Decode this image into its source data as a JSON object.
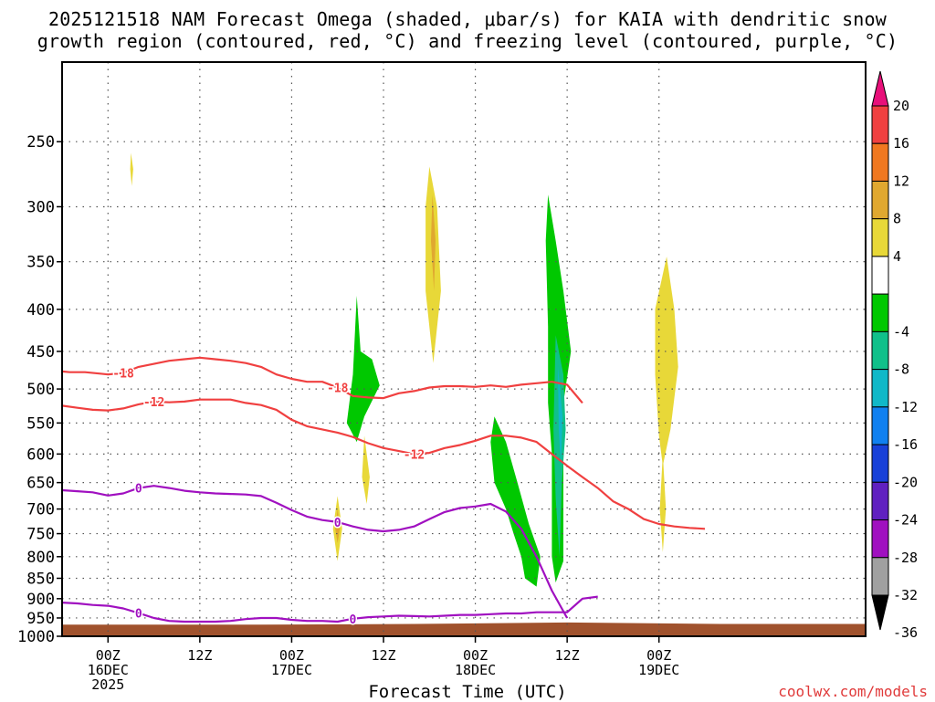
{
  "chart_data": {
    "type": "heatmap",
    "title_line1": "2025121518 NAM Forecast Omega (shaded, μbar/s) for KAIA with dendritic snow",
    "title_line2": "growth region (contoured, red, °C) and freezing level (contoured, purple, °C)",
    "xlabel": "Forecast Time (UTC)",
    "credit": "coolwx.com/models",
    "xlim": [
      -6,
      99
    ],
    "ylim": [
      1000,
      200
    ],
    "x_ticks": [
      {
        "x": 0,
        "lines": [
          "00Z",
          "16DEC",
          "2025"
        ]
      },
      {
        "x": 12,
        "lines": [
          "12Z"
        ]
      },
      {
        "x": 24,
        "lines": [
          "00Z",
          "17DEC"
        ]
      },
      {
        "x": 36,
        "lines": [
          "12Z"
        ]
      },
      {
        "x": 48,
        "lines": [
          "00Z",
          "18DEC"
        ]
      },
      {
        "x": 60,
        "lines": [
          "12Z"
        ]
      },
      {
        "x": 72,
        "lines": [
          "00Z",
          "19DEC"
        ]
      }
    ],
    "y_ticks": [
      250,
      300,
      350,
      400,
      450,
      500,
      550,
      600,
      650,
      700,
      750,
      800,
      850,
      900,
      950,
      1000
    ],
    "colorbar": {
      "labels": [
        "20",
        "16",
        "12",
        "8",
        "4",
        "-4",
        "-8",
        "-12",
        "-16",
        "-20",
        "-24",
        "-28",
        "-32",
        "-36"
      ],
      "colors": [
        "#e8107a",
        "#f04040",
        "#f07820",
        "#e0a830",
        "#e8d838",
        "#ffffff",
        "#00c800",
        "#10c08a",
        "#10b8c8",
        "#1080f0",
        "#1840d8",
        "#6020c0",
        "#a010c0",
        "#a0a0a0",
        "#000000"
      ]
    },
    "series": [
      {
        "name": "-18C",
        "color": "#f04040",
        "label": "-18",
        "x": [
          -6,
          -5,
          -3,
          -1,
          0,
          2,
          4,
          6,
          8,
          10,
          12,
          14,
          16,
          18,
          20,
          22,
          24,
          26,
          28,
          30,
          32,
          34,
          36,
          38,
          40,
          42,
          44,
          46,
          48,
          50,
          52,
          54,
          56,
          58,
          60,
          62
        ],
        "y": [
          476,
          477,
          477,
          479,
          480,
          478,
          470,
          466,
          462,
          460,
          458,
          460,
          462,
          465,
          470,
          480,
          486,
          490,
          490,
          498,
          510,
          512,
          513,
          506,
          503,
          498,
          496,
          496,
          497,
          495,
          497,
          494,
          492,
          490,
          494,
          520
        ]
      },
      {
        "name": "-12C",
        "color": "#f04040",
        "label": "-12",
        "x": [
          -6,
          -4,
          -2,
          0,
          2,
          4,
          6,
          8,
          10,
          12,
          14,
          16,
          18,
          20,
          22,
          24,
          26,
          28,
          30,
          32,
          34,
          36,
          38,
          40,
          42,
          44,
          46,
          48,
          50,
          52,
          54,
          56,
          58,
          60,
          62,
          64,
          66,
          68,
          70,
          72,
          74,
          76,
          78
        ],
        "y": [
          524,
          527,
          530,
          531,
          528,
          522,
          518,
          519,
          518,
          515,
          515,
          515,
          520,
          523,
          530,
          545,
          555,
          560,
          565,
          572,
          582,
          590,
          595,
          600,
          598,
          590,
          585,
          578,
          570,
          570,
          573,
          580,
          600,
          620,
          640,
          660,
          685,
          700,
          720,
          730,
          735,
          738,
          740
        ]
      },
      {
        "name": "0C upper",
        "color": "#a010c0",
        "label": "0",
        "x": [
          -6,
          -4,
          -2,
          0,
          2,
          4,
          6,
          8,
          10,
          12,
          14,
          16,
          18,
          20,
          22,
          24,
          26,
          28,
          30,
          32,
          34,
          36,
          38,
          40,
          42,
          44,
          46,
          48,
          50,
          52,
          54,
          56,
          58,
          60
        ],
        "y": [
          664,
          666,
          668,
          674,
          670,
          660,
          656,
          660,
          665,
          668,
          670,
          671,
          672,
          675,
          688,
          702,
          715,
          722,
          726,
          735,
          742,
          745,
          742,
          735,
          720,
          706,
          698,
          695,
          690,
          705,
          740,
          800,
          880,
          950
        ]
      },
      {
        "name": "0C lower",
        "color": "#a010c0",
        "label": "0",
        "x": [
          -6,
          -4,
          -2,
          0,
          2,
          4,
          6,
          8,
          10,
          12,
          14,
          16,
          18,
          20,
          22,
          24,
          26,
          28,
          30,
          32,
          34,
          36,
          38,
          40,
          42,
          44,
          46,
          48,
          50,
          52,
          54,
          56,
          58,
          60,
          62,
          64
        ],
        "y": [
          910,
          912,
          916,
          918,
          925,
          937,
          950,
          958,
          960,
          960,
          960,
          958,
          953,
          950,
          950,
          955,
          958,
          958,
          960,
          952,
          948,
          946,
          944,
          945,
          946,
          944,
          942,
          942,
          940,
          938,
          938,
          935,
          935,
          935,
          900,
          895
        ]
      }
    ]
  }
}
